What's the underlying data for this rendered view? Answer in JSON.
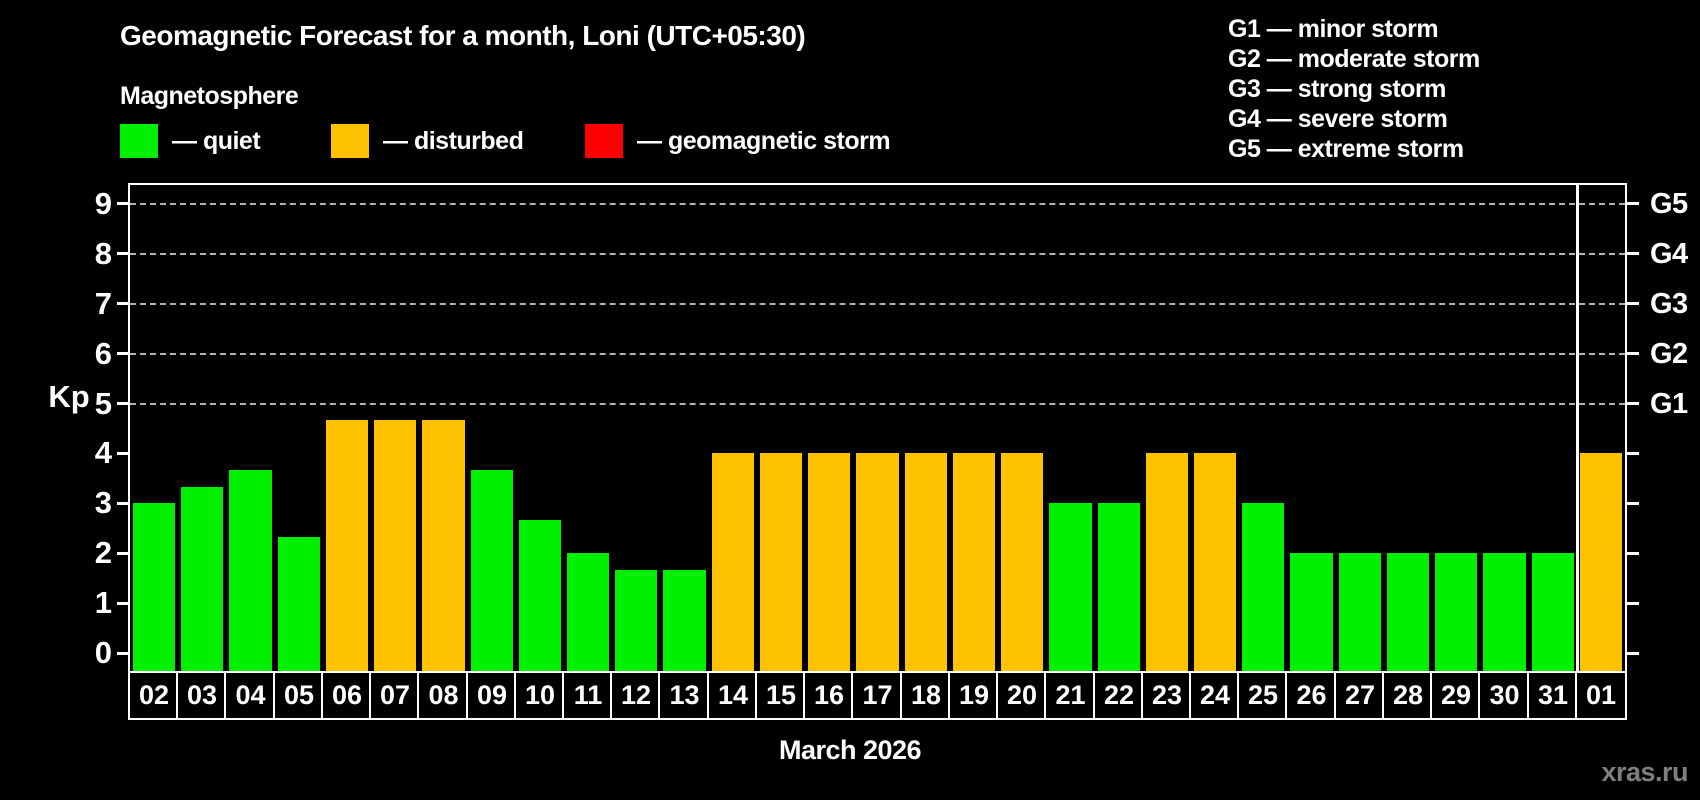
{
  "header": {
    "title": "Geomagnetic Forecast for a month, Loni (UTC+05:30)",
    "subtitle": "Magnetosphere"
  },
  "legend": {
    "items": [
      {
        "name": "quiet",
        "label": "— quiet",
        "color": "#00f000"
      },
      {
        "name": "disturbed",
        "label": "— disturbed",
        "color": "#ffc200"
      },
      {
        "name": "geomagnetic-storm",
        "label": "— geomagnetic storm",
        "color": "#ff0000"
      }
    ]
  },
  "g_scale_legend": {
    "lines": [
      "G1 — minor storm",
      "G2 — moderate storm",
      "G3 — strong storm",
      "G4 — severe storm",
      "G5 — extreme storm"
    ]
  },
  "footer": {
    "watermark": "xras.ru"
  },
  "chart_data": {
    "type": "bar",
    "title": "Geomagnetic Forecast for a month, Loni (UTC+05:30)",
    "xlabel": "March 2026",
    "ylabel": "Kp",
    "ylim": [
      0,
      9
    ],
    "y_ticks": [
      0,
      1,
      2,
      3,
      4,
      5,
      6,
      7,
      8,
      9
    ],
    "grid": "dashed horizontal gridlines at Kp 5,6,7,8,9",
    "legend_position": "top",
    "right_axis_labels": [
      {
        "kp": 5,
        "label": "G1"
      },
      {
        "kp": 6,
        "label": "G2"
      },
      {
        "kp": 7,
        "label": "G3"
      },
      {
        "kp": 8,
        "label": "G4"
      },
      {
        "kp": 9,
        "label": "G5"
      }
    ],
    "categories": [
      "02",
      "03",
      "04",
      "05",
      "06",
      "07",
      "08",
      "09",
      "10",
      "11",
      "12",
      "13",
      "14",
      "15",
      "16",
      "17",
      "18",
      "19",
      "20",
      "21",
      "22",
      "23",
      "24",
      "25",
      "26",
      "27",
      "28",
      "29",
      "30",
      "31",
      "01"
    ],
    "values": [
      3,
      3.33,
      3.67,
      2.33,
      4.67,
      4.67,
      4.67,
      3.67,
      2.67,
      2,
      1.67,
      1.67,
      4,
      4,
      4,
      4,
      4,
      4,
      4,
      3,
      3,
      4,
      4,
      3,
      2,
      2,
      2,
      2,
      2,
      2,
      4
    ],
    "statuses": [
      "quiet",
      "quiet",
      "quiet",
      "quiet",
      "disturbed",
      "disturbed",
      "disturbed",
      "quiet",
      "quiet",
      "quiet",
      "quiet",
      "quiet",
      "disturbed",
      "disturbed",
      "disturbed",
      "disturbed",
      "disturbed",
      "disturbed",
      "disturbed",
      "quiet",
      "quiet",
      "disturbed",
      "disturbed",
      "quiet",
      "quiet",
      "quiet",
      "quiet",
      "quiet",
      "quiet",
      "quiet",
      "disturbed"
    ],
    "bar_colors": {
      "quiet": "#00f000",
      "disturbed": "#ffc200",
      "storm": "#ff0000"
    },
    "separator_after_index": 29
  }
}
